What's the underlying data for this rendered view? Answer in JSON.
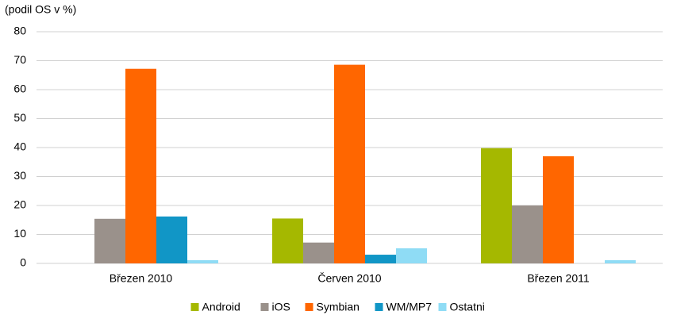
{
  "chart_data": {
    "type": "bar",
    "y_label": "(podil OS v %)",
    "categories": [
      "Březen 2010",
      "Červen 2010",
      "Březen 2011"
    ],
    "series": [
      {
        "name": "Android",
        "color": "#a5b800",
        "values": [
          0,
          15.5,
          39.8
        ]
      },
      {
        "name": "iOS",
        "color": "#9a918b",
        "values": [
          15.4,
          7.2,
          20
        ]
      },
      {
        "name": "Symbian",
        "color": "#ff6600",
        "values": [
          67.2,
          68.6,
          37
        ]
      },
      {
        "name": "WM/MP7",
        "color": "#1196c6",
        "values": [
          16.2,
          3,
          0
        ]
      },
      {
        "name": "Ostatni",
        "color": "#8fdcf5",
        "values": [
          1.1,
          5.2,
          1.1
        ]
      }
    ],
    "ylim": [
      0,
      80
    ],
    "yticks": [
      0,
      10,
      20,
      30,
      40,
      50,
      60,
      70,
      80
    ],
    "grid": true,
    "legend": "bottom"
  }
}
